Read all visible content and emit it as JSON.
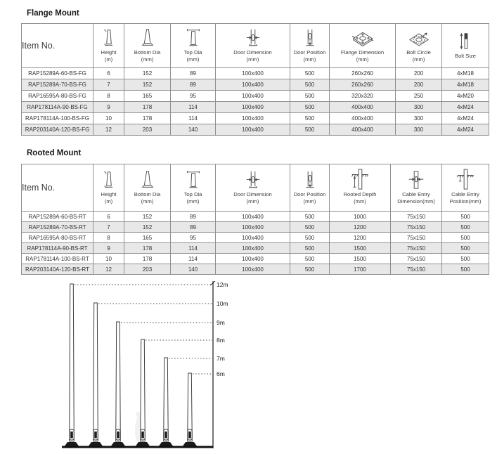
{
  "colors": {
    "table_border": "#8f8f8f",
    "row_alt": "#e8e8e8",
    "text": "#333333",
    "line": "#3c3c3c",
    "base_fill": "#1a1a1a"
  },
  "tables": [
    {
      "title": "Flange Mount",
      "item_col": "Item No.",
      "columns": [
        {
          "label": "Height",
          "unit": "(m)",
          "icon": "height-icon"
        },
        {
          "label": "Bottom Dia",
          "unit": "(mm)",
          "icon": "bottom-dia-icon"
        },
        {
          "label": "Top Dia",
          "unit": "(mm)",
          "icon": "top-dia-icon"
        },
        {
          "label": "Door Dimension",
          "unit": "(mm)",
          "icon": "door-dimension-icon"
        },
        {
          "label": "Door Position",
          "unit": "(mm)",
          "icon": "door-position-icon"
        },
        {
          "label": "Flange Dimension",
          "unit": "(mm)",
          "icon": "flange-dimension-icon"
        },
        {
          "label": "Bolt Circle",
          "unit": "(mm)",
          "icon": "bolt-circle-icon"
        },
        {
          "label": "Bolt Size",
          "unit": "",
          "icon": "bolt-size-icon"
        }
      ],
      "rows": [
        [
          "RAP15289A-60-BS-FG",
          "6",
          "152",
          "89",
          "100x400",
          "500",
          "260x260",
          "200",
          "4xM18"
        ],
        [
          "RAP15289A-70-BS-FG",
          "7",
          "152",
          "89",
          "100x400",
          "500",
          "260x260",
          "200",
          "4xM18"
        ],
        [
          "RAP16595A-80-BS-FG",
          "8",
          "165",
          "95",
          "100x400",
          "500",
          "320x320",
          "250",
          "4xM20"
        ],
        [
          "RAP178114A-90-BS-FG",
          "9",
          "178",
          "114",
          "100x400",
          "500",
          "400x400",
          "300",
          "4xM24"
        ],
        [
          "RAP178114A-100-BS-FG",
          "10",
          "178",
          "114",
          "100x400",
          "500",
          "400x400",
          "300",
          "4xM24"
        ],
        [
          "RAP203140A-120-BS-FG",
          "12",
          "203",
          "140",
          "100x400",
          "500",
          "400x400",
          "300",
          "4xM24"
        ]
      ]
    },
    {
      "title": "Rooted Mount",
      "item_col": "Item No.",
      "columns": [
        {
          "label": "Height",
          "unit": "(m)",
          "icon": "height-icon"
        },
        {
          "label": "Bottom Dia",
          "unit": "(mm)",
          "icon": "bottom-dia-icon"
        },
        {
          "label": "Top Dia",
          "unit": "(mm)",
          "icon": "top-dia-icon"
        },
        {
          "label": "Door Dimension",
          "unit": "(mm)",
          "icon": "door-dimension-icon"
        },
        {
          "label": "Door Position",
          "unit": "(mm)",
          "icon": "door-position-icon"
        },
        {
          "label": "Rooted Depth",
          "unit": "(mm)",
          "icon": "rooted-depth-icon"
        },
        {
          "label": "Cable Entry",
          "unit": "Dimension(mm)",
          "icon": "cable-entry-dimension-icon"
        },
        {
          "label": "Cable Entry",
          "unit": "Position(mm)",
          "icon": "cable-entry-position-icon"
        }
      ],
      "rows": [
        [
          "RAP15289A-60-BS-RT",
          "6",
          "152",
          "89",
          "100x400",
          "500",
          "1000",
          "75x150",
          "500"
        ],
        [
          "RAP15289A-70-BS-RT",
          "7",
          "152",
          "89",
          "100x400",
          "500",
          "1200",
          "75x150",
          "500"
        ],
        [
          "RAP16595A-80-BS-RT",
          "8",
          "165",
          "95",
          "100x400",
          "500",
          "1200",
          "75x150",
          "500"
        ],
        [
          "RAP178114A-90-BS-RT",
          "9",
          "178",
          "114",
          "100x400",
          "500",
          "1500",
          "75x150",
          "500"
        ],
        [
          "RAP178114A-100-BS-RT",
          "10",
          "178",
          "114",
          "100x400",
          "500",
          "1500",
          "75x150",
          "500"
        ],
        [
          "RAP203140A-120-BS-RT",
          "12",
          "203",
          "140",
          "100x400",
          "500",
          "1700",
          "75x150",
          "500"
        ]
      ]
    }
  ],
  "diagram": {
    "type": "pole-height-comparison",
    "pole_labels": [
      "12m",
      "10m",
      "9m",
      "8m",
      "7m",
      "6m"
    ],
    "pole_heights_m": [
      12,
      10,
      9,
      8,
      7,
      6
    ]
  }
}
